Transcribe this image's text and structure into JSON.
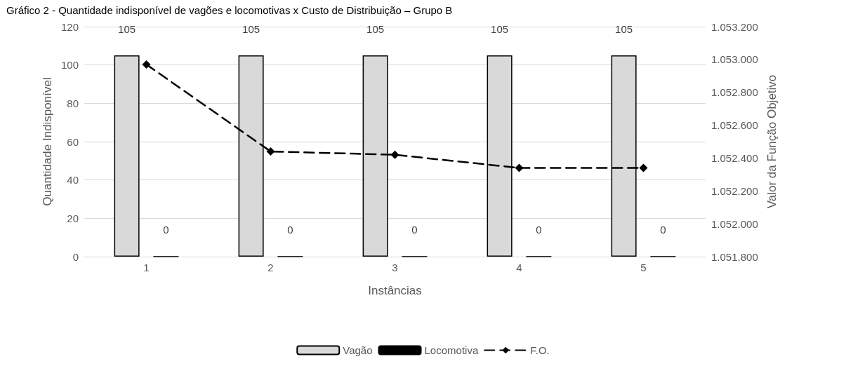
{
  "chart_data": {
    "type": "bar",
    "title": "Gráfico 2 - Quantidade indisponível de vagões e locomotivas x Custo de Distribuição – Grupo B",
    "xlabel": "Instâncias",
    "ylabel": "Quantidade Indisponível",
    "y2label": "Valor da Função Objetivo",
    "categories": [
      "1",
      "2",
      "3",
      "4",
      "5"
    ],
    "series": [
      {
        "name": "Vagão",
        "color": "#d9d9d9",
        "values": [
          105,
          105,
          105,
          105,
          105
        ],
        "value_labels": [
          "105",
          "105",
          "105",
          "105",
          "105"
        ]
      },
      {
        "name": "Locomotiva",
        "color": "#000000",
        "values": [
          0,
          0,
          0,
          0,
          0
        ],
        "value_labels": [
          "0",
          "0",
          "0",
          "0",
          "0"
        ]
      },
      {
        "name": "F.O.",
        "type": "line",
        "axis": "y2",
        "color": "#000000",
        "values": [
          1052970,
          1052440,
          1052420,
          1052340,
          1052340
        ],
        "marker": "diamond",
        "line_style": "dashed"
      }
    ],
    "ylim": [
      0,
      120
    ],
    "yticks": [
      0,
      20,
      40,
      60,
      80,
      100,
      120
    ],
    "y2lim": [
      1051800,
      1053200
    ],
    "y2ticks": [
      {
        "value": 1051800,
        "label": "1.051.800"
      },
      {
        "value": 1052000,
        "label": "1.052.000"
      },
      {
        "value": 1052200,
        "label": "1.052.200"
      },
      {
        "value": 1052400,
        "label": "1.052.400"
      },
      {
        "value": 1052600,
        "label": "1.052.600"
      },
      {
        "value": 1052800,
        "label": "1.052.800"
      },
      {
        "value": 1053000,
        "label": "1.053.000"
      },
      {
        "value": 1053200,
        "label": "1.053.200"
      }
    ],
    "grid": "y",
    "legend": "bottom"
  }
}
